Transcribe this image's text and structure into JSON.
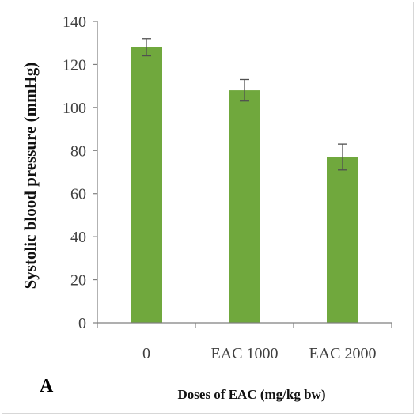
{
  "chart_data": {
    "type": "bar",
    "categories": [
      "0",
      "EAC 1000",
      "EAC 2000"
    ],
    "values": [
      128,
      108,
      77
    ],
    "error": [
      4,
      5,
      6
    ],
    "ylabel": "Systolic blood pressure (mmHg)",
    "xlabel": "Doses of EAC (mg/kg bw)",
    "panel_label": "A",
    "ylim": [
      0,
      140
    ],
    "yticks": [
      "0",
      "20",
      "40",
      "60",
      "80",
      "100",
      "120",
      "140"
    ],
    "grid": false,
    "legend": "none",
    "bar_color": "#70a83d",
    "error_bar_color": "#505050",
    "axis_color": "#7f7f7f"
  }
}
